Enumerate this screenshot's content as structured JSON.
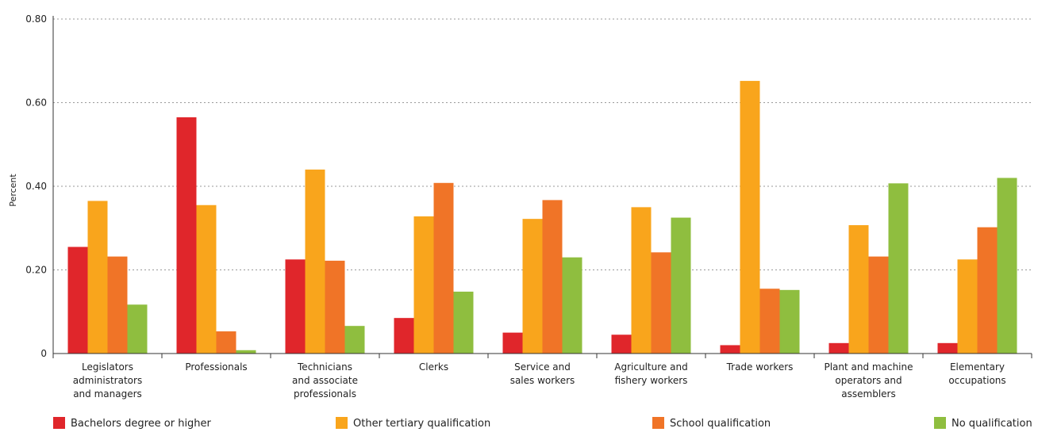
{
  "chart_data": {
    "type": "bar",
    "ylabel": "Percent",
    "ylim": [
      0,
      0.8
    ],
    "yticks": [
      "0",
      "0.20",
      "0.40",
      "0.60",
      "0.80"
    ],
    "ytick_values": [
      0,
      0.2,
      0.4,
      0.6,
      0.8
    ],
    "grid": true,
    "legend_position": "bottom",
    "categories": [
      [
        "Legislators",
        "administrators",
        "and managers"
      ],
      [
        "Professionals"
      ],
      [
        "Technicians",
        "and associate",
        "professionals"
      ],
      [
        "Clerks"
      ],
      [
        "Service and",
        "sales workers"
      ],
      [
        "Agriculture and",
        "fishery workers"
      ],
      [
        "Trade workers"
      ],
      [
        "Plant and machine",
        "operators and",
        "assemblers"
      ],
      [
        "Elementary",
        "occupations"
      ]
    ],
    "series": [
      {
        "name": "Bachelors degree or higher",
        "color": "#e0262b",
        "values": [
          0.255,
          0.565,
          0.225,
          0.085,
          0.05,
          0.045,
          0.02,
          0.025,
          0.025
        ]
      },
      {
        "name": "Other tertiary qualification",
        "color": "#f9a51c",
        "values": [
          0.365,
          0.355,
          0.44,
          0.328,
          0.322,
          0.35,
          0.652,
          0.307,
          0.225
        ]
      },
      {
        "name": "School qualification",
        "color": "#f07427",
        "values": [
          0.232,
          0.053,
          0.222,
          0.408,
          0.367,
          0.242,
          0.155,
          0.232,
          0.302
        ]
      },
      {
        "name": "No qualification",
        "color": "#8fbe3f",
        "values": [
          0.117,
          0.008,
          0.066,
          0.148,
          0.23,
          0.325,
          0.152,
          0.407,
          0.42
        ]
      }
    ]
  }
}
